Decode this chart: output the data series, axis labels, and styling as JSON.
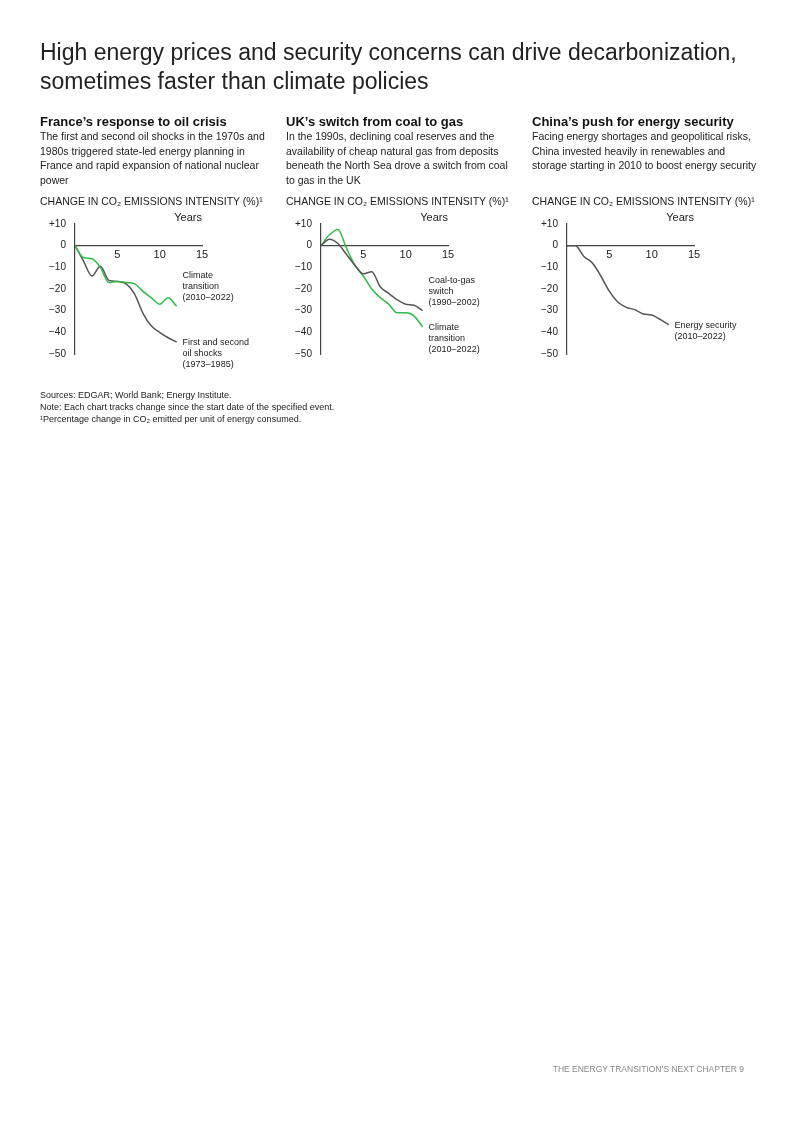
{
  "chart_data": [
    {
      "type": "other",
      "title": "High energy prices and security concerns can drive decarbonization, sometimes faster than climate policies"
    },
    {
      "type": "line",
      "title": "France’s response to oil crisis",
      "subtitle": "The first and second oil shocks in the 1970s and 1980s triggered state-led energy planning in France and rapid expansion of national nuclear power",
      "ylabel": "CHANGE IN CO₂ EMISSIONS INTENSITY (%)¹",
      "xlabel": "Years",
      "x": [
        0,
        1,
        2,
        3,
        4,
        5,
        6,
        7,
        8,
        9,
        10,
        11,
        12
      ],
      "xlim": [
        0,
        15
      ],
      "xticks": [
        5,
        10,
        15
      ],
      "ylim": [
        -50,
        10
      ],
      "yticks": [
        {
          "value": 10,
          "label": "+10"
        },
        {
          "value": 0,
          "label": "0"
        },
        {
          "value": -10,
          "label": "−10"
        },
        {
          "value": -20,
          "label": "−20"
        },
        {
          "value": -30,
          "label": "−30"
        },
        {
          "value": -40,
          "label": "−40"
        },
        {
          "value": -50,
          "label": "−50"
        }
      ],
      "grid": false,
      "legend": false,
      "marker": "none",
      "line_style": "solid",
      "series": [
        {
          "name": "Climate transition (2010–2022)",
          "color": "#2ebd4a",
          "values": [
            0,
            -5.5,
            -6,
            -10,
            -17,
            -16.5,
            -17,
            -17.5,
            -21,
            -24,
            -27,
            -24,
            -28
          ]
        },
        {
          "name": "First and second oil shocks (1973–1985)",
          "color": "#555555",
          "values": [
            0,
            -7,
            -14,
            -9.5,
            -16,
            -16.5,
            -17.5,
            -22,
            -31,
            -37,
            -40,
            -42.5,
            -44.5
          ]
        }
      ]
    },
    {
      "type": "line",
      "title": "UK’s switch from coal to gas",
      "subtitle": "In the 1990s, declining coal reserves and the availability of cheap natural gas from deposits beneath the North Sea drove a switch from coal to gas in the UK",
      "ylabel": "CHANGE IN CO₂ EMISSIONS INTENSITY (%)¹",
      "xlabel": "Years",
      "x": [
        0,
        1,
        2,
        3,
        4,
        5,
        6,
        7,
        8,
        9,
        10,
        11,
        12
      ],
      "xlim": [
        0,
        15
      ],
      "xticks": [
        5,
        10,
        15
      ],
      "ylim": [
        -50,
        10
      ],
      "yticks": [
        {
          "value": 10,
          "label": "+10"
        },
        {
          "value": 0,
          "label": "0"
        },
        {
          "value": -10,
          "label": "−10"
        },
        {
          "value": -20,
          "label": "−20"
        },
        {
          "value": -30,
          "label": "−30"
        },
        {
          "value": -40,
          "label": "−40"
        },
        {
          "value": -50,
          "label": "−50"
        }
      ],
      "grid": false,
      "legend": false,
      "marker": "none",
      "line_style": "solid",
      "series": [
        {
          "name": "Coal-to-gas switch (1990–2002)",
          "color": "#555555",
          "values": [
            0,
            3,
            1,
            -4,
            -9,
            -13,
            -12,
            -19,
            -22,
            -25,
            -27,
            -27.5,
            -30
          ]
        },
        {
          "name": "Climate transition (2010–2022)",
          "color": "#2ebd4a",
          "values": [
            0,
            5,
            7.5,
            -1,
            -9,
            -14,
            -20,
            -24,
            -27,
            -31,
            -31,
            -32.5,
            -37.5
          ]
        }
      ]
    },
    {
      "type": "line",
      "title": "China’s push for energy security",
      "subtitle": "Facing energy shortages and geopolitical risks, China invested heavily in renewables and storage starting in 2010 to boost energy security",
      "ylabel": "CHANGE IN CO₂ EMISSIONS INTENSITY (%)¹",
      "xlabel": "Years",
      "x": [
        0,
        1,
        2,
        3,
        4,
        5,
        6,
        7,
        8,
        9,
        10,
        11,
        12
      ],
      "xlim": [
        0,
        15
      ],
      "xticks": [
        5,
        10,
        15
      ],
      "ylim": [
        -50,
        10
      ],
      "yticks": [
        {
          "value": 10,
          "label": "+10"
        },
        {
          "value": 0,
          "label": "0"
        },
        {
          "value": -10,
          "label": "−10"
        },
        {
          "value": -20,
          "label": "−20"
        },
        {
          "value": -30,
          "label": "−30"
        },
        {
          "value": -40,
          "label": "−40"
        },
        {
          "value": -50,
          "label": "−50"
        }
      ],
      "grid": false,
      "legend": false,
      "marker": "none",
      "line_style": "solid",
      "series": [
        {
          "name": "Energy security (2010–2022)",
          "color": "#555555",
          "values": [
            0,
            0,
            -5,
            -8,
            -14,
            -21,
            -26,
            -28.5,
            -29.5,
            -31.5,
            -32,
            -34,
            -36.5
          ]
        }
      ]
    },
    {
      "type": "other",
      "annotations": [
        "Sources: EDGAR; World Bank; Energy Institute.",
        "Note: Each chart tracks change since the start date of the specified event.",
        "¹Percentage change in CO₂ emitted per unit of energy consumed.",
        "THE ENERGY TRANSITION’S NEXT CHAPTER 9"
      ]
    }
  ]
}
